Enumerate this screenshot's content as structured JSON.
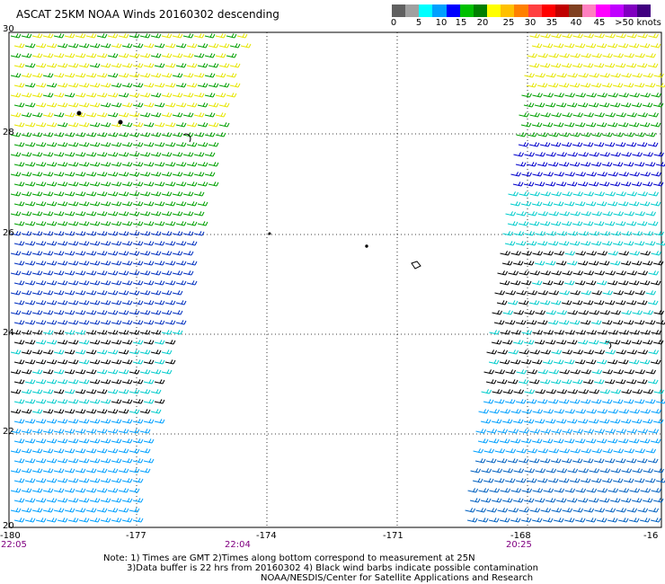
{
  "title": "ASCAT 25KM NOAA Winds 20160302 descending",
  "colorbar": {
    "labels": [
      "0",
      "5",
      "10",
      "15",
      "20",
      "25",
      "30",
      "35",
      "40",
      "45",
      ">50 knots"
    ],
    "colors": [
      "#606060",
      "#a0a0a0",
      "#00ffff",
      "#00a0ff",
      "#0000ff",
      "#00c000",
      "#008000",
      "#ffff00",
      "#ffc000",
      "#ff8000",
      "#ff4040",
      "#ff0000",
      "#c00000",
      "#804020",
      "#ff80c0",
      "#ff00ff",
      "#c000ff",
      "#8000c0",
      "#400080"
    ]
  },
  "axes": {
    "lat_labels": [
      "30",
      "28",
      "26",
      "24",
      "22",
      "20"
    ],
    "lon_labels": [
      "-180",
      "-177",
      "-174",
      "-171",
      "-168",
      "-16"
    ]
  },
  "times": [
    "22:05",
    "22:04",
    "20:25"
  ],
  "notes": [
    "Note: 1) Times are GMT 2)Times along bottom correspond to measurement at 25N",
    "3)Data buffer is 22 hrs from 20160302 4) Black wind barbs indicate possible contamination",
    "NOAA/NESDIS/Center for Satellite Applications and Research"
  ]
}
